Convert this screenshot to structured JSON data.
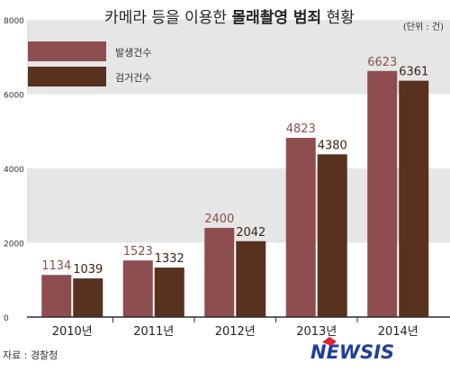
{
  "chart_data": {
    "type": "bar",
    "title_prefix": "카메라 등을 이용한 ",
    "title_bold": "몰래촬영 범죄",
    "title_suffix": " 현황",
    "unit_note": "(단위 : 건)",
    "categories": [
      "2010년",
      "2011년",
      "2012년",
      "2013년",
      "2014년"
    ],
    "series": [
      {
        "name": "발생건수",
        "values": [
          1134,
          1523,
          2400,
          4823,
          6623
        ],
        "color": "#8e4e4f",
        "label_color": "#8e4e4f"
      },
      {
        "name": "검거건수",
        "values": [
          1039,
          1332,
          2042,
          4380,
          6361
        ],
        "color": "#58311f",
        "label_color": "#3a2216"
      }
    ],
    "yticks": [
      "0",
      "2000",
      "4000",
      "6000",
      "8000"
    ],
    "ylim": [
      0,
      8000
    ],
    "grid_bands": true,
    "legend_position": "top-left"
  },
  "source": "자료 : 경찰청",
  "logo": "NEWSIS",
  "colors": {
    "band": "#e6e6e6",
    "axis": "#2b2b2b",
    "logo_blue": "#1f3f9e",
    "logo_red": "#d9252b"
  }
}
